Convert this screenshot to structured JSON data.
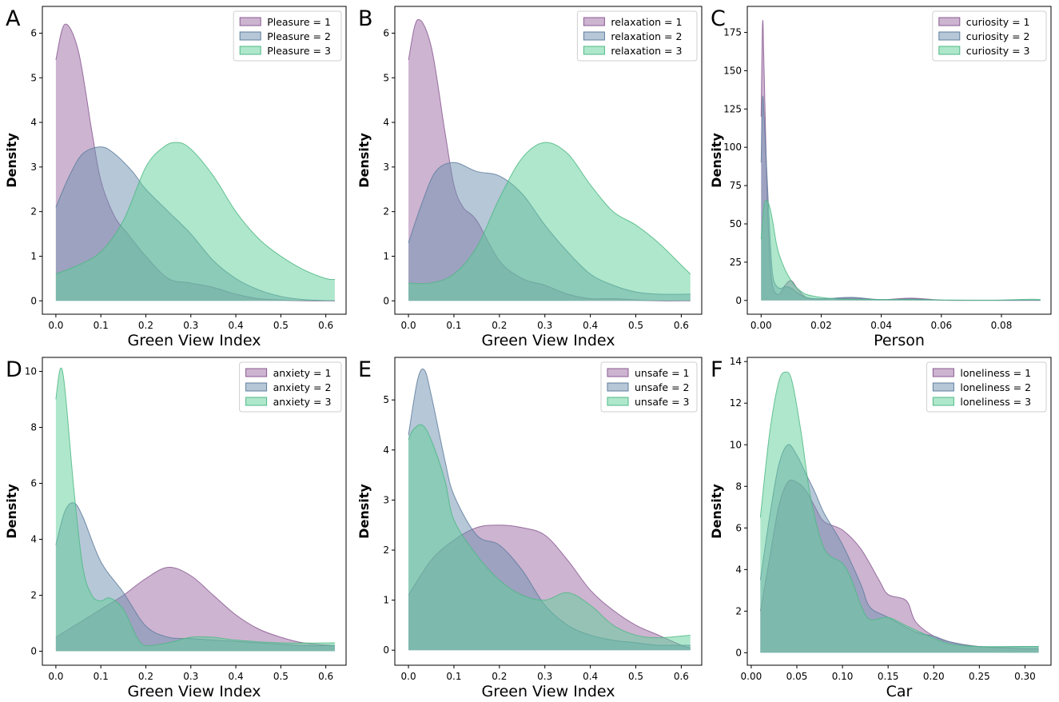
{
  "colors": {
    "c1": "#9b6aa3",
    "c2": "#6e8fb0",
    "c3": "#5fcf99",
    "c1edge": "#8a5c92",
    "c2edge": "#5f7e9e",
    "c3edge": "#4fb985"
  },
  "chart_data": [
    {
      "type": "area",
      "panel": "A",
      "xlabel": "Green View Index",
      "ylabel": "Density",
      "xlim": [
        -0.03,
        0.645
      ],
      "ylim": [
        -0.3,
        6.6
      ],
      "xticks": [
        0.0,
        0.1,
        0.2,
        0.3,
        0.4,
        0.5,
        0.6
      ],
      "xtick_labels": [
        "0.0",
        "0.1",
        "0.2",
        "0.3",
        "0.4",
        "0.5",
        "0.6"
      ],
      "yticks": [
        0,
        1,
        2,
        3,
        4,
        5,
        6
      ],
      "ytick_labels": [
        "0",
        "1",
        "2",
        "3",
        "4",
        "5",
        "6"
      ],
      "legend": "top-right",
      "series": [
        {
          "name": "Pleasure = 1",
          "x": [
            0.0,
            0.02,
            0.05,
            0.08,
            0.1,
            0.13,
            0.16,
            0.2,
            0.25,
            0.3,
            0.35,
            0.4,
            0.45,
            0.5,
            0.55,
            0.62
          ],
          "values": [
            5.4,
            6.2,
            5.6,
            3.8,
            2.7,
            1.9,
            1.5,
            1.0,
            0.5,
            0.4,
            0.3,
            0.15,
            0.05,
            0.02,
            0.0,
            0.0
          ]
        },
        {
          "name": "Pleasure = 2",
          "x": [
            0.0,
            0.03,
            0.06,
            0.1,
            0.13,
            0.17,
            0.2,
            0.25,
            0.3,
            0.35,
            0.4,
            0.45,
            0.5,
            0.55,
            0.62
          ],
          "values": [
            2.1,
            2.8,
            3.3,
            3.45,
            3.3,
            2.9,
            2.5,
            2.0,
            1.5,
            0.9,
            0.5,
            0.25,
            0.1,
            0.03,
            0.0
          ]
        },
        {
          "name": "Pleasure = 3",
          "x": [
            0.0,
            0.05,
            0.1,
            0.15,
            0.2,
            0.24,
            0.27,
            0.3,
            0.35,
            0.4,
            0.45,
            0.5,
            0.55,
            0.6,
            0.62
          ],
          "values": [
            0.6,
            0.8,
            1.1,
            1.8,
            3.0,
            3.45,
            3.55,
            3.4,
            2.8,
            2.0,
            1.4,
            1.0,
            0.7,
            0.5,
            0.48
          ]
        }
      ]
    },
    {
      "type": "area",
      "panel": "B",
      "xlabel": "Green View Index",
      "ylabel": "Density",
      "xlim": [
        -0.03,
        0.645
      ],
      "ylim": [
        -0.3,
        6.6
      ],
      "xticks": [
        0.0,
        0.1,
        0.2,
        0.3,
        0.4,
        0.5,
        0.6
      ],
      "xtick_labels": [
        "0.0",
        "0.1",
        "0.2",
        "0.3",
        "0.4",
        "0.5",
        "0.6"
      ],
      "yticks": [
        0,
        1,
        2,
        3,
        4,
        5,
        6
      ],
      "ytick_labels": [
        "0",
        "1",
        "2",
        "3",
        "4",
        "5",
        "6"
      ],
      "legend": "top-right",
      "series": [
        {
          "name": "relaxation = 1",
          "x": [
            0.0,
            0.02,
            0.05,
            0.08,
            0.1,
            0.12,
            0.15,
            0.2,
            0.25,
            0.3,
            0.35,
            0.4,
            0.45,
            0.5,
            0.55,
            0.62
          ],
          "values": [
            5.4,
            6.3,
            5.7,
            3.8,
            2.6,
            2.1,
            1.8,
            0.9,
            0.5,
            0.35,
            0.15,
            0.05,
            0.05,
            0.02,
            0.0,
            0.0
          ]
        },
        {
          "name": "relaxation = 2",
          "x": [
            0.0,
            0.03,
            0.06,
            0.1,
            0.15,
            0.2,
            0.25,
            0.3,
            0.35,
            0.4,
            0.45,
            0.5,
            0.55,
            0.62
          ],
          "values": [
            1.3,
            2.2,
            2.9,
            3.1,
            2.9,
            2.8,
            2.4,
            1.7,
            1.1,
            0.6,
            0.35,
            0.2,
            0.15,
            0.15
          ]
        },
        {
          "name": "relaxation = 3",
          "x": [
            0.0,
            0.05,
            0.1,
            0.15,
            0.2,
            0.25,
            0.3,
            0.35,
            0.4,
            0.45,
            0.5,
            0.55,
            0.6,
            0.62
          ],
          "values": [
            0.4,
            0.4,
            0.6,
            1.2,
            2.3,
            3.2,
            3.55,
            3.3,
            2.6,
            2.0,
            1.7,
            1.3,
            0.8,
            0.6
          ]
        }
      ]
    },
    {
      "type": "area",
      "panel": "C",
      "xlabel": "Person",
      "ylabel": "Density",
      "xlim": [
        -0.0046,
        0.0965
      ],
      "ylim": [
        -9,
        192
      ],
      "xticks": [
        0.0,
        0.02,
        0.04,
        0.06,
        0.08
      ],
      "xtick_labels": [
        "0.00",
        "0.02",
        "0.04",
        "0.06",
        "0.08"
      ],
      "yticks": [
        0,
        25,
        50,
        75,
        100,
        125,
        150,
        175
      ],
      "ytick_labels": [
        "0",
        "25",
        "50",
        "75",
        "100",
        "125",
        "150",
        "175"
      ],
      "legend": "top-right",
      "series": [
        {
          "name": "curiosity = 1",
          "x": [
            0.0,
            0.0005,
            0.001,
            0.002,
            0.003,
            0.004,
            0.006,
            0.008,
            0.01,
            0.012,
            0.015,
            0.02,
            0.03,
            0.04,
            0.05,
            0.06,
            0.07,
            0.093
          ],
          "values": [
            120,
            182,
            150,
            70,
            25,
            8,
            4,
            10,
            13,
            8,
            2,
            1,
            1.5,
            0.5,
            1.5,
            0.2,
            0.1,
            0.1
          ]
        },
        {
          "name": "curiosity = 2",
          "x": [
            0.0,
            0.0005,
            0.001,
            0.002,
            0.003,
            0.004,
            0.006,
            0.008,
            0.01,
            0.012,
            0.015,
            0.02,
            0.03,
            0.04,
            0.05,
            0.06,
            0.07,
            0.093
          ],
          "values": [
            90,
            132,
            120,
            80,
            40,
            15,
            8,
            9,
            8,
            5,
            2,
            1,
            2,
            0.5,
            1,
            0.2,
            0.1,
            0.1
          ]
        },
        {
          "name": "curiosity = 3",
          "x": [
            0.0,
            0.001,
            0.002,
            0.003,
            0.004,
            0.005,
            0.006,
            0.008,
            0.01,
            0.012,
            0.015,
            0.02,
            0.025,
            0.03,
            0.04,
            0.05,
            0.06,
            0.07,
            0.08,
            0.09,
            0.093
          ],
          "values": [
            40,
            62,
            65,
            60,
            50,
            38,
            30,
            20,
            13,
            8,
            4,
            2,
            1,
            0.8,
            0.5,
            0.5,
            0.3,
            0.2,
            0.3,
            0.8,
            0.5
          ]
        }
      ]
    },
    {
      "type": "area",
      "panel": "D",
      "xlabel": "Green View Index",
      "ylabel": "Density",
      "xlim": [
        -0.03,
        0.645
      ],
      "ylim": [
        -0.5,
        10.5
      ],
      "xticks": [
        0.0,
        0.1,
        0.2,
        0.3,
        0.4,
        0.5,
        0.6
      ],
      "xtick_labels": [
        "0.0",
        "0.1",
        "0.2",
        "0.3",
        "0.4",
        "0.5",
        "0.6"
      ],
      "yticks": [
        0,
        2,
        4,
        6,
        8,
        10
      ],
      "ytick_labels": [
        "0",
        "2",
        "4",
        "6",
        "8",
        "10"
      ],
      "legend": "top-right",
      "series": [
        {
          "name": "anxiety = 1",
          "x": [
            0.0,
            0.05,
            0.1,
            0.15,
            0.2,
            0.25,
            0.3,
            0.35,
            0.4,
            0.45,
            0.5,
            0.55,
            0.62
          ],
          "values": [
            0.5,
            1.0,
            1.5,
            2.0,
            2.6,
            3.0,
            2.7,
            2.0,
            1.3,
            0.8,
            0.5,
            0.3,
            0.2
          ]
        },
        {
          "name": "anxiety = 2",
          "x": [
            0.0,
            0.02,
            0.04,
            0.06,
            0.1,
            0.15,
            0.2,
            0.25,
            0.3,
            0.35,
            0.4,
            0.45,
            0.5,
            0.55,
            0.62
          ],
          "values": [
            3.8,
            5.0,
            5.3,
            4.8,
            3.2,
            2.1,
            0.9,
            0.5,
            0.45,
            0.4,
            0.35,
            0.3,
            0.25,
            0.2,
            0.2
          ]
        },
        {
          "name": "anxiety = 3",
          "x": [
            0.0,
            0.01,
            0.02,
            0.04,
            0.06,
            0.08,
            0.1,
            0.12,
            0.15,
            0.18,
            0.2,
            0.25,
            0.3,
            0.35,
            0.4,
            0.5,
            0.62
          ],
          "values": [
            9.0,
            10.1,
            9.4,
            5.8,
            3.0,
            2.0,
            1.8,
            1.9,
            1.5,
            0.5,
            0.2,
            0.3,
            0.5,
            0.5,
            0.4,
            0.3,
            0.3
          ]
        }
      ]
    },
    {
      "type": "area",
      "panel": "E",
      "xlabel": "Green View Index",
      "ylabel": "Density",
      "xlim": [
        -0.03,
        0.645
      ],
      "ylim": [
        -0.3,
        5.85
      ],
      "xticks": [
        0.0,
        0.1,
        0.2,
        0.3,
        0.4,
        0.5,
        0.6
      ],
      "xtick_labels": [
        "0.0",
        "0.1",
        "0.2",
        "0.3",
        "0.4",
        "0.5",
        "0.6"
      ],
      "yticks": [
        0,
        1,
        2,
        3,
        4,
        5
      ],
      "ytick_labels": [
        "0",
        "1",
        "2",
        "3",
        "4",
        "5"
      ],
      "legend": "top-right",
      "series": [
        {
          "name": "unsafe = 1",
          "x": [
            0.0,
            0.05,
            0.1,
            0.15,
            0.2,
            0.25,
            0.3,
            0.35,
            0.4,
            0.45,
            0.5,
            0.55,
            0.6,
            0.62
          ],
          "values": [
            1.1,
            1.8,
            2.2,
            2.45,
            2.5,
            2.45,
            2.3,
            1.8,
            1.2,
            0.8,
            0.5,
            0.3,
            0.1,
            0.05
          ]
        },
        {
          "name": "unsafe = 2",
          "x": [
            0.0,
            0.02,
            0.035,
            0.05,
            0.08,
            0.1,
            0.15,
            0.2,
            0.25,
            0.3,
            0.35,
            0.4,
            0.45,
            0.5,
            0.55,
            0.62
          ],
          "values": [
            4.3,
            5.4,
            5.6,
            5.1,
            3.8,
            3.1,
            2.3,
            2.1,
            1.6,
            0.9,
            0.5,
            0.3,
            0.2,
            0.15,
            0.1,
            0.1
          ]
        },
        {
          "name": "unsafe = 3",
          "x": [
            0.0,
            0.01,
            0.03,
            0.05,
            0.08,
            0.1,
            0.15,
            0.2,
            0.25,
            0.3,
            0.35,
            0.4,
            0.45,
            0.5,
            0.55,
            0.62
          ],
          "values": [
            4.2,
            4.4,
            4.5,
            4.2,
            3.4,
            2.6,
            1.9,
            1.4,
            1.1,
            1.0,
            1.15,
            0.9,
            0.5,
            0.3,
            0.25,
            0.3
          ]
        }
      ]
    },
    {
      "type": "area",
      "panel": "F",
      "xlabel": "Car",
      "ylabel": "Density",
      "xlim": [
        -0.0043,
        0.3285
      ],
      "ylim": [
        -0.6,
        14.2
      ],
      "xticks": [
        0.0,
        0.05,
        0.1,
        0.15,
        0.2,
        0.25,
        0.3
      ],
      "xtick_labels": [
        "0.00",
        "0.05",
        "0.10",
        "0.15",
        "0.20",
        "0.25",
        "0.30"
      ],
      "yticks": [
        0,
        2,
        4,
        6,
        8,
        10,
        12,
        14
      ],
      "ytick_labels": [
        "0",
        "2",
        "4",
        "6",
        "8",
        "10",
        "12",
        "14"
      ],
      "legend": "top-right",
      "series": [
        {
          "name": "loneliness = 1",
          "x": [
            0.01,
            0.02,
            0.03,
            0.04,
            0.05,
            0.06,
            0.07,
            0.08,
            0.1,
            0.12,
            0.14,
            0.15,
            0.17,
            0.18,
            0.2,
            0.22,
            0.25,
            0.3,
            0.315
          ],
          "values": [
            2.0,
            4.5,
            7.0,
            8.2,
            8.2,
            7.8,
            7.0,
            6.3,
            5.9,
            5.0,
            3.5,
            2.8,
            2.5,
            1.5,
            0.8,
            0.5,
            0.3,
            0.2,
            0.2
          ]
        },
        {
          "name": "loneliness = 2",
          "x": [
            0.01,
            0.02,
            0.03,
            0.04,
            0.05,
            0.06,
            0.07,
            0.08,
            0.1,
            0.12,
            0.13,
            0.15,
            0.18,
            0.2,
            0.22,
            0.25,
            0.3,
            0.315
          ],
          "values": [
            3.5,
            6.5,
            9.0,
            10.0,
            9.5,
            8.6,
            7.7,
            6.7,
            5.2,
            3.3,
            2.2,
            1.7,
            1.0,
            0.8,
            0.5,
            0.3,
            0.3,
            0.3
          ]
        },
        {
          "name": "loneliness = 3",
          "x": [
            0.01,
            0.02,
            0.03,
            0.038,
            0.045,
            0.055,
            0.065,
            0.08,
            0.1,
            0.11,
            0.12,
            0.13,
            0.15,
            0.17,
            0.2,
            0.22,
            0.25,
            0.3,
            0.315
          ],
          "values": [
            6.5,
            10.5,
            13.0,
            13.5,
            13.0,
            10.5,
            7.5,
            5.0,
            4.3,
            3.5,
            2.3,
            1.6,
            1.7,
            1.3,
            0.7,
            0.4,
            0.3,
            0.3,
            0.3
          ]
        }
      ]
    }
  ]
}
